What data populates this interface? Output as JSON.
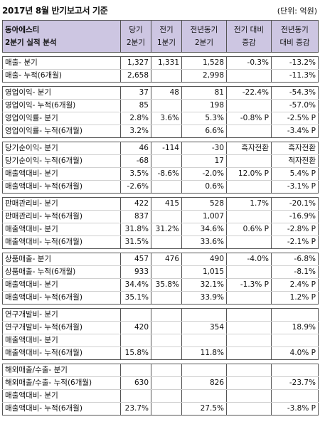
{
  "title": "2017년 8월 반기보고서 기준",
  "unit": "(단위: 억원)",
  "header": {
    "c0_l1": "동아에스티",
    "c0_l2": "2분기 실적 분석",
    "c1_l1": "당기",
    "c1_l2": "2분기",
    "c2_l1": "전기",
    "c2_l2": "1분기",
    "c3_l1": "전년동기",
    "c3_l2": "2분기",
    "c4_l1": "전기 대비",
    "c4_l2": "증감",
    "c5_l1": "전년동기",
    "c5_l2": "대비 증감"
  },
  "groups": [
    {
      "rows": [
        [
          "매출- 분기",
          "1,327",
          "1,331",
          "1,528",
          "-0.3%",
          "-13.2%"
        ],
        [
          "매출- 누적(6개월)",
          "2,658",
          "",
          "2,998",
          "",
          "-11.3%"
        ]
      ]
    },
    {
      "rows": [
        [
          "영업이익- 분기",
          "37",
          "48",
          "81",
          "-22.4%",
          "-54.3%"
        ],
        [
          "영업이익- 누적(6개월)",
          "85",
          "",
          "198",
          "",
          "-57.0%"
        ],
        [
          "영업이익률- 분기",
          "2.8%",
          "3.6%",
          "5.3%",
          "-0.8% P",
          "-2.5% P"
        ],
        [
          "영업이익률- 누적(6개월)",
          "3.2%",
          "",
          "6.6%",
          "",
          "-3.4% P"
        ]
      ]
    },
    {
      "rows": [
        [
          "당기순이익- 분기",
          "46",
          "-114",
          "-30",
          "흑자전환",
          "흑자전환"
        ],
        [
          "당기순이익- 누적(6개월)",
          "-68",
          "",
          "17",
          "",
          "적자전환"
        ],
        [
          "매출액대비- 분기",
          "3.5%",
          "-8.6%",
          "-2.0%",
          "12.0% P",
          "5.4% P"
        ],
        [
          "매출액대비- 누적(6개월)",
          "-2.6%",
          "",
          "0.6%",
          "",
          "-3.1% P"
        ]
      ]
    },
    {
      "rows": [
        [
          "판매관리비- 분기",
          "422",
          "415",
          "528",
          "1.7%",
          "-20.1%"
        ],
        [
          "판매관리비- 누적(6개월)",
          "837",
          "",
          "1,007",
          "",
          "-16.9%"
        ],
        [
          "매출액대비- 분기",
          "31.8%",
          "31.2%",
          "34.6%",
          "0.6% P",
          "-2.8% P"
        ],
        [
          "매출액대비- 누적(6개월)",
          "31.5%",
          "",
          "33.6%",
          "",
          "-2.1% P"
        ]
      ]
    },
    {
      "rows": [
        [
          "상품매출- 분기",
          "457",
          "476",
          "490",
          "-4.0%",
          "-6.8%"
        ],
        [
          "상품매출- 누적(6개월)",
          "933",
          "",
          "1,015",
          "",
          "-8.1%"
        ],
        [
          "매출액대비- 분기",
          "34.4%",
          "35.8%",
          "32.1%",
          "-1.3% P",
          "2.4% P"
        ],
        [
          "매출액대비- 누적(6개월)",
          "35.1%",
          "",
          "33.9%",
          "",
          "1.2% P"
        ]
      ]
    },
    {
      "rows": [
        [
          "연구개발비- 분기",
          "",
          "",
          "",
          "",
          ""
        ],
        [
          "연구개발비- 누적(6개월)",
          "420",
          "",
          "354",
          "",
          "18.9%"
        ],
        [
          "매출액대비- 분기",
          "",
          "",
          "",
          "",
          ""
        ],
        [
          "매출액대비- 누적(6개월)",
          "15.8%",
          "",
          "11.8%",
          "",
          "4.0% P"
        ]
      ]
    },
    {
      "rows": [
        [
          "해외매출/수출- 분기",
          "",
          "",
          "",
          "",
          ""
        ],
        [
          "해외매출/수출- 누적(6개월)",
          "630",
          "",
          "826",
          "",
          "-23.7%"
        ],
        [
          "매출액대비- 분기",
          "",
          "",
          "",
          "",
          ""
        ],
        [
          "매출액대비- 누적(6개월)",
          "23.7%",
          "",
          "27.5%",
          "",
          "-3.8% P"
        ]
      ]
    }
  ]
}
